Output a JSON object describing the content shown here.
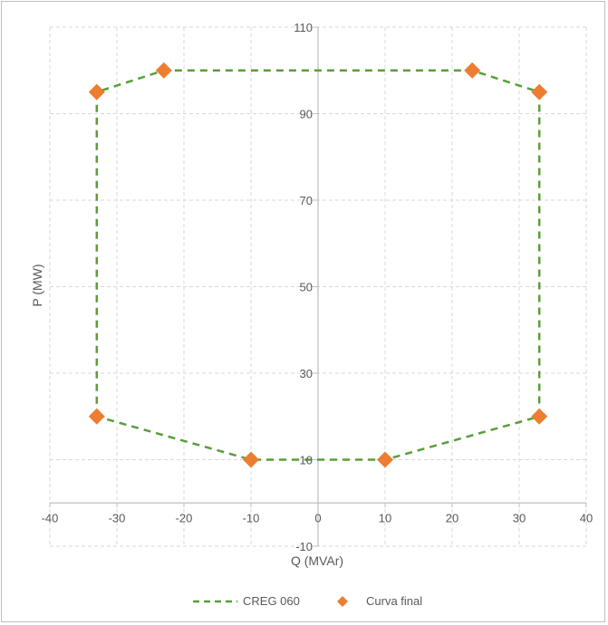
{
  "chart_data": {
    "type": "scatter",
    "xlabel": "Q (MVAr)",
    "ylabel": "P (MW)",
    "xlim": [
      -40,
      40
    ],
    "ylim": [
      -10,
      110
    ],
    "x_ticks": [
      -40,
      -30,
      -20,
      -10,
      0,
      10,
      20,
      30,
      40
    ],
    "y_ticks": [
      -10,
      10,
      30,
      50,
      70,
      90,
      110
    ],
    "grid": true,
    "legend_position": "bottom",
    "series": [
      {
        "name": "CREG 060",
        "style": "dashed-line",
        "color": "#5a9e3a",
        "points": [
          {
            "x": -33,
            "y": 20
          },
          {
            "x": -33,
            "y": 95
          },
          {
            "x": -23,
            "y": 100
          },
          {
            "x": 23,
            "y": 100
          },
          {
            "x": 33,
            "y": 95
          },
          {
            "x": 33,
            "y": 20
          },
          {
            "x": 10,
            "y": 10
          },
          {
            "x": -10,
            "y": 10
          },
          {
            "x": -33,
            "y": 20
          }
        ]
      },
      {
        "name": "Curva final",
        "style": "diamond-markers",
        "color": "#ed7d31",
        "points": [
          {
            "x": -33,
            "y": 95
          },
          {
            "x": -23,
            "y": 100
          },
          {
            "x": 23,
            "y": 100
          },
          {
            "x": 33,
            "y": 95
          },
          {
            "x": -33,
            "y": 20
          },
          {
            "x": 33,
            "y": 20
          },
          {
            "x": -10,
            "y": 10
          },
          {
            "x": 10,
            "y": 10
          }
        ]
      }
    ]
  }
}
